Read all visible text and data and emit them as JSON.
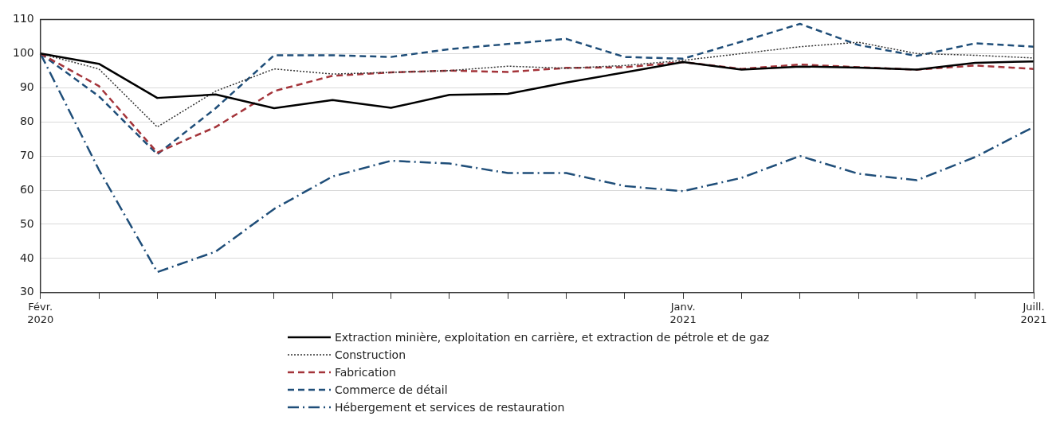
{
  "chart_data": {
    "type": "line",
    "categories": [
      "Févr. 2020",
      null,
      null,
      null,
      null,
      null,
      null,
      null,
      null,
      null,
      null,
      "Janv. 2021",
      null,
      null,
      null,
      null,
      null,
      "Juill. 2021"
    ],
    "series": [
      {
        "name": "Extraction minière, exploitation en carrière, et extraction de pétrole et de gaz",
        "color": "#000000",
        "line_style": "solid",
        "values": [
          100,
          97,
          87,
          88,
          84,
          86.4,
          84.1,
          87.9,
          88.2,
          91.5,
          94.5,
          97.5,
          95.3,
          96.2,
          95.9,
          95.3,
          97.3,
          97.7
        ]
      },
      {
        "name": "Construction",
        "color": "#333333",
        "line_style": "dotted",
        "values": [
          100,
          95.5,
          78.5,
          89,
          95.5,
          94,
          94.5,
          95,
          96.3,
          95.7,
          96.5,
          98,
          100,
          102,
          103.3,
          100,
          99.5,
          98.7
        ]
      },
      {
        "name": "Fabrication",
        "color": "#a4343a",
        "line_style": "dashed",
        "values": [
          100,
          90.5,
          71,
          78.5,
          89,
          93.5,
          94.5,
          95,
          94.6,
          95.8,
          96,
          97.5,
          95.5,
          96.8,
          96,
          95.3,
          96.5,
          95.5
        ]
      },
      {
        "name": "Commerce de détail",
        "color": "#1f4e79",
        "line_style": "dashed",
        "values": [
          100,
          87.5,
          70.5,
          84,
          99.5,
          99.5,
          99,
          101.3,
          102.8,
          104.3,
          99,
          98.5,
          103.5,
          108.7,
          102.5,
          99.3,
          103,
          102
        ]
      },
      {
        "name": "Hébergement et services de restauration",
        "color": "#1f4e79",
        "line_style": "dashdot",
        "values": [
          100,
          66,
          36,
          42,
          54.5,
          64,
          68.6,
          67.8,
          65,
          65,
          61.2,
          59.7,
          63.6,
          70,
          64.8,
          62.9,
          69.7,
          78.5
        ]
      }
    ],
    "ylim": [
      30,
      110
    ],
    "yticks": [
      30,
      40,
      50,
      60,
      70,
      80,
      90,
      100,
      110
    ],
    "grid": "y",
    "legend": "bottom",
    "marker": "none"
  }
}
